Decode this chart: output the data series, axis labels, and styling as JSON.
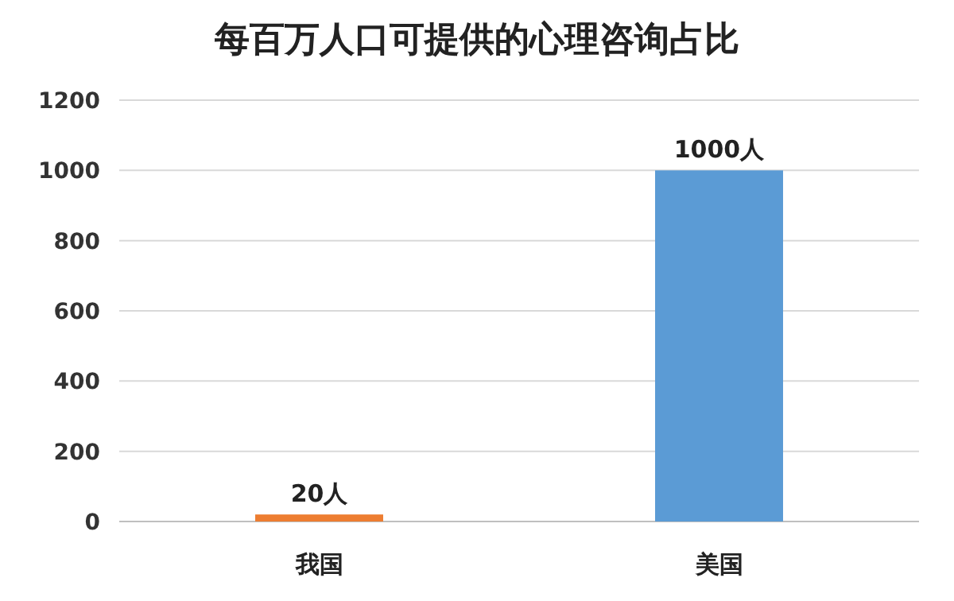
{
  "chart_data": {
    "type": "bar",
    "title": "每百万人口可提供的心理咨询占比",
    "categories": [
      "我国",
      "美国"
    ],
    "values": [
      20,
      1000
    ],
    "colors": [
      "#ed7d31",
      "#5b9bd5"
    ],
    "value_labels": [
      "20人",
      "1000人"
    ],
    "ylim": [
      0,
      1200
    ],
    "yticks": [
      0,
      200,
      400,
      600,
      800,
      1000,
      1200
    ],
    "grid": "y"
  }
}
